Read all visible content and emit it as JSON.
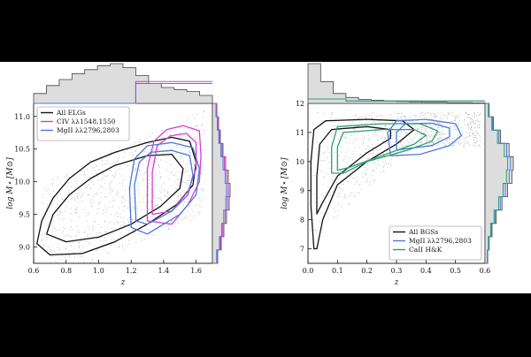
{
  "colors": {
    "background": "#000000",
    "figure": "#ffffff",
    "black": "#111111",
    "magenta": "#d040d0",
    "blue": "#4a78e0",
    "green": "#2aa070",
    "hist_fill": "#dddddd",
    "scatter": "#b8b8b8"
  },
  "chart_data": [
    {
      "type": "scatter",
      "xlabel": "z",
      "ylabel": "log M⋆ [M⊙]",
      "xlim": [
        0.6,
        1.7
      ],
      "ylim": [
        8.75,
        11.2
      ],
      "xticks": [
        "0.6",
        "0.8",
        "1.0",
        "1.2",
        "1.4",
        "1.6"
      ],
      "yticks": [
        "9.0",
        "9.5",
        "10.0",
        "10.5",
        "11.0"
      ],
      "xtick_values": [
        0.6,
        0.8,
        1.0,
        1.2,
        1.4,
        1.6
      ],
      "ytick_values": [
        9.0,
        9.5,
        10.0,
        10.5,
        11.0
      ],
      "legend_position": "top-left",
      "marginals": "top histogram of z, right histogram of log M⋆",
      "series": [
        {
          "name": "All ELGs",
          "color": "black",
          "contours": [
            [
              [
                0.62,
                9.05
              ],
              [
                0.65,
                9.4
              ],
              [
                0.72,
                9.75
              ],
              [
                0.82,
                10.05
              ],
              [
                0.95,
                10.3
              ],
              [
                1.1,
                10.45
              ],
              [
                1.3,
                10.6
              ],
              [
                1.45,
                10.68
              ],
              [
                1.56,
                10.62
              ],
              [
                1.6,
                10.3
              ],
              [
                1.58,
                9.95
              ],
              [
                1.48,
                9.65
              ],
              [
                1.3,
                9.35
              ],
              [
                1.1,
                9.08
              ],
              [
                0.9,
                8.9
              ],
              [
                0.7,
                8.88
              ],
              [
                0.62,
                9.05
              ]
            ],
            [
              [
                0.68,
                9.2
              ],
              [
                0.72,
                9.5
              ],
              [
                0.82,
                9.8
              ],
              [
                0.95,
                10.05
              ],
              [
                1.1,
                10.25
              ],
              [
                1.3,
                10.4
              ],
              [
                1.45,
                10.42
              ],
              [
                1.52,
                10.2
              ],
              [
                1.5,
                9.9
              ],
              [
                1.38,
                9.62
              ],
              [
                1.2,
                9.35
              ],
              [
                1.0,
                9.15
              ],
              [
                0.8,
                9.08
              ],
              [
                0.68,
                9.2
              ]
            ]
          ]
        },
        {
          "name": "CIV λλ1548,1550",
          "color": "magenta",
          "contours": [
            [
              [
                1.3,
                9.4
              ],
              [
                1.3,
                10.2
              ],
              [
                1.34,
                10.62
              ],
              [
                1.42,
                10.8
              ],
              [
                1.52,
                10.86
              ],
              [
                1.62,
                10.78
              ],
              [
                1.63,
                10.4
              ],
              [
                1.62,
                10.0
              ],
              [
                1.55,
                9.65
              ],
              [
                1.45,
                9.35
              ],
              [
                1.3,
                9.4
              ]
            ],
            [
              [
                1.33,
                9.5
              ],
              [
                1.33,
                10.15
              ],
              [
                1.36,
                10.55
              ],
              [
                1.44,
                10.7
              ],
              [
                1.54,
                10.74
              ],
              [
                1.6,
                10.6
              ],
              [
                1.6,
                10.2
              ],
              [
                1.55,
                9.85
              ],
              [
                1.45,
                9.55
              ],
              [
                1.33,
                9.5
              ]
            ]
          ]
        },
        {
          "name": "MgII λλ2796,2803",
          "color": "blue",
          "contours": [
            [
              [
                1.2,
                9.3
              ],
              [
                1.19,
                9.9
              ],
              [
                1.22,
                10.35
              ],
              [
                1.3,
                10.55
              ],
              [
                1.45,
                10.6
              ],
              [
                1.58,
                10.52
              ],
              [
                1.62,
                10.2
              ],
              [
                1.6,
                9.8
              ],
              [
                1.5,
                9.5
              ],
              [
                1.3,
                9.2
              ],
              [
                1.2,
                9.3
              ]
            ],
            [
              [
                1.23,
                9.4
              ],
              [
                1.22,
                9.95
              ],
              [
                1.25,
                10.3
              ],
              [
                1.32,
                10.45
              ],
              [
                1.45,
                10.48
              ],
              [
                1.56,
                10.4
              ],
              [
                1.58,
                10.1
              ],
              [
                1.55,
                9.8
              ],
              [
                1.45,
                9.55
              ],
              [
                1.3,
                9.35
              ],
              [
                1.23,
                9.4
              ]
            ]
          ]
        }
      ]
    },
    {
      "type": "scatter",
      "xlabel": "z",
      "ylabel": "log M⋆ [M⊙]",
      "xlim": [
        0.0,
        0.6
      ],
      "ylim": [
        6.5,
        12.0
      ],
      "xticks": [
        "0.0",
        "0.1",
        "0.2",
        "0.3",
        "0.4",
        "0.5",
        "0.6"
      ],
      "yticks": [
        "7",
        "8",
        "9",
        "10",
        "11",
        "12"
      ],
      "xtick_values": [
        0.0,
        0.1,
        0.2,
        0.3,
        0.4,
        0.5,
        0.6
      ],
      "ytick_values": [
        7,
        8,
        9,
        10,
        11,
        12
      ],
      "legend_position": "bottom-right",
      "marginals": "top histogram of z, right histogram of log M⋆",
      "series": [
        {
          "name": "All BGSs",
          "color": "black",
          "contours": [
            [
              [
                0.02,
                7.0
              ],
              [
                0.01,
                8.5
              ],
              [
                0.01,
                10.0
              ],
              [
                0.02,
                11.1
              ],
              [
                0.06,
                11.4
              ],
              [
                0.2,
                11.45
              ],
              [
                0.32,
                11.4
              ],
              [
                0.36,
                11.1
              ],
              [
                0.3,
                10.6
              ],
              [
                0.2,
                10.0
              ],
              [
                0.1,
                9.2
              ],
              [
                0.05,
                8.0
              ],
              [
                0.03,
                7.0
              ],
              [
                0.02,
                7.0
              ]
            ],
            [
              [
                0.03,
                8.2
              ],
              [
                0.03,
                9.5
              ],
              [
                0.04,
                10.6
              ],
              [
                0.08,
                11.1
              ],
              [
                0.2,
                11.2
              ],
              [
                0.28,
                11.1
              ],
              [
                0.28,
                10.8
              ],
              [
                0.2,
                10.3
              ],
              [
                0.1,
                9.5
              ],
              [
                0.05,
                8.6
              ],
              [
                0.03,
                8.2
              ]
            ]
          ]
        },
        {
          "name": "MgII λλ2796,2803",
          "color": "blue",
          "contours": [
            [
              [
                0.28,
                10.2
              ],
              [
                0.27,
                11.0
              ],
              [
                0.3,
                11.4
              ],
              [
                0.4,
                11.45
              ],
              [
                0.5,
                11.3
              ],
              [
                0.52,
                10.9
              ],
              [
                0.48,
                10.55
              ],
              [
                0.38,
                10.25
              ],
              [
                0.28,
                10.2
              ]
            ],
            [
              [
                0.3,
                10.4
              ],
              [
                0.3,
                11.0
              ],
              [
                0.33,
                11.3
              ],
              [
                0.42,
                11.32
              ],
              [
                0.48,
                11.15
              ],
              [
                0.48,
                10.85
              ],
              [
                0.42,
                10.55
              ],
              [
                0.3,
                10.4
              ]
            ]
          ]
        },
        {
          "name": "CaII H&K",
          "color": "green",
          "contours": [
            [
              [
                0.08,
                9.6
              ],
              [
                0.08,
                10.5
              ],
              [
                0.1,
                11.2
              ],
              [
                0.25,
                11.3
              ],
              [
                0.38,
                11.3
              ],
              [
                0.44,
                11.05
              ],
              [
                0.42,
                10.7
              ],
              [
                0.34,
                10.4
              ],
              [
                0.2,
                10.0
              ],
              [
                0.12,
                9.6
              ],
              [
                0.08,
                9.6
              ]
            ],
            [
              [
                0.1,
                9.7
              ],
              [
                0.1,
                10.5
              ],
              [
                0.12,
                11.0
              ],
              [
                0.25,
                11.1
              ],
              [
                0.36,
                11.1
              ],
              [
                0.4,
                10.9
              ],
              [
                0.36,
                10.6
              ],
              [
                0.25,
                10.2
              ],
              [
                0.14,
                9.8
              ],
              [
                0.1,
                9.7
              ]
            ]
          ]
        }
      ]
    }
  ]
}
